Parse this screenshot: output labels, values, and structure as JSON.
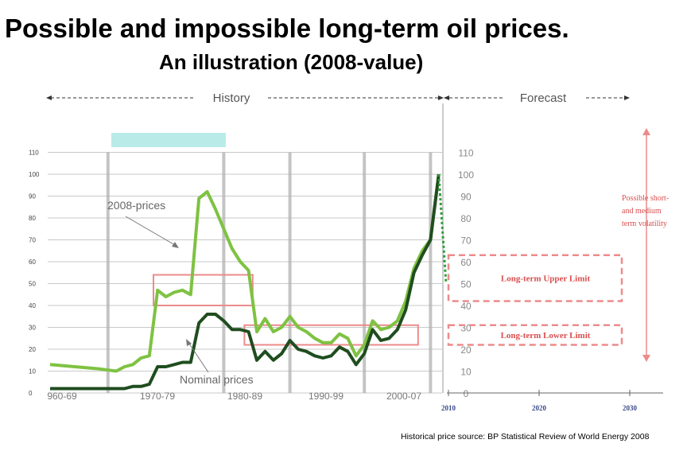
{
  "title": "Possible and impossible long-term oil prices.",
  "subtitle": "An illustration (2008-value)",
  "source_note": "Historical price source: BP Statistical Review of World Energy 2008",
  "colors": {
    "real": "#7ec242",
    "nominal": "#1f4d1f",
    "forecast_green": "#2e9e3a",
    "box": "#ec8b8b",
    "grid": "#c9c9c9",
    "cyan_bar": "#b9ebe8",
    "annotation_text": "#d94f4f",
    "forecast_axis_label": "#3a4a8a"
  },
  "periods": {
    "history": "History",
    "forecast": "Forecast"
  },
  "left_axis": {
    "ticks": [
      "110",
      "100",
      "90",
      "80",
      "70",
      "60",
      "50",
      "40",
      "30",
      "20",
      "10",
      "0"
    ]
  },
  "right_axis": {
    "ticks": [
      "110",
      "100",
      "90",
      "80",
      "70",
      "60",
      "50",
      "40",
      "30",
      "20",
      "10",
      "0"
    ]
  },
  "decade_labels": [
    "960-69",
    "1970-79",
    "1980-89",
    "1990-99",
    "2000-07"
  ],
  "forecast_years": [
    "2010",
    "2020",
    "2030"
  ],
  "annotations": {
    "real_label": "2008-prices",
    "nominal_label": "Nominal prices",
    "upper_limit": "Long-term Upper Limit",
    "lower_limit": "Long-term Lower Limit",
    "volatility": [
      "Possible short-",
      "and medium",
      "term volatility"
    ]
  },
  "chart_data": {
    "type": "line",
    "title": "Possible and impossible long-term oil prices.",
    "subtitle": "An illustration (2008-value)",
    "xlabel": "",
    "ylabel": "",
    "xlim": [
      1961,
      2034
    ],
    "ylim": [
      0,
      110
    ],
    "grid": true,
    "series": [
      {
        "name": "2008-prices",
        "points": [
          [
            1961,
            13
          ],
          [
            1964,
            12
          ],
          [
            1967,
            11
          ],
          [
            1969,
            10
          ],
          [
            1970,
            12
          ],
          [
            1971,
            13
          ],
          [
            1972,
            16
          ],
          [
            1973,
            17
          ],
          [
            1974,
            47
          ],
          [
            1975,
            44
          ],
          [
            1976,
            46
          ],
          [
            1977,
            47
          ],
          [
            1978,
            45
          ],
          [
            1979,
            89
          ],
          [
            1980,
            92
          ],
          [
            1981,
            84
          ],
          [
            1982,
            75
          ],
          [
            1983,
            66
          ],
          [
            1984,
            60
          ],
          [
            1985,
            56
          ],
          [
            1986,
            28
          ],
          [
            1987,
            34
          ],
          [
            1988,
            28
          ],
          [
            1989,
            30
          ],
          [
            1990,
            35
          ],
          [
            1991,
            30
          ],
          [
            1992,
            28
          ],
          [
            1993,
            25
          ],
          [
            1994,
            23
          ],
          [
            1995,
            23
          ],
          [
            1996,
            27
          ],
          [
            1997,
            25
          ],
          [
            1998,
            17
          ],
          [
            1999,
            22
          ],
          [
            2000,
            33
          ],
          [
            2001,
            29
          ],
          [
            2002,
            30
          ],
          [
            2003,
            33
          ],
          [
            2004,
            42
          ],
          [
            2005,
            57
          ],
          [
            2006,
            65
          ],
          [
            2007,
            70
          ],
          [
            2008,
            100
          ]
        ]
      },
      {
        "name": "Nominal prices",
        "points": [
          [
            1961,
            2
          ],
          [
            1964,
            2
          ],
          [
            1967,
            2
          ],
          [
            1969,
            2
          ],
          [
            1970,
            2
          ],
          [
            1971,
            3
          ],
          [
            1972,
            3
          ],
          [
            1973,
            4
          ],
          [
            1974,
            12
          ],
          [
            1975,
            12
          ],
          [
            1976,
            13
          ],
          [
            1977,
            14
          ],
          [
            1978,
            14
          ],
          [
            1979,
            32
          ],
          [
            1980,
            36
          ],
          [
            1981,
            36
          ],
          [
            1982,
            33
          ],
          [
            1983,
            29
          ],
          [
            1984,
            29
          ],
          [
            1985,
            28
          ],
          [
            1986,
            15
          ],
          [
            1987,
            19
          ],
          [
            1988,
            15
          ],
          [
            1989,
            18
          ],
          [
            1990,
            24
          ],
          [
            1991,
            20
          ],
          [
            1992,
            19
          ],
          [
            1993,
            17
          ],
          [
            1994,
            16
          ],
          [
            1995,
            17
          ],
          [
            1996,
            21
          ],
          [
            1997,
            19
          ],
          [
            1998,
            13
          ],
          [
            1999,
            18
          ],
          [
            2000,
            29
          ],
          [
            2001,
            24
          ],
          [
            2002,
            25
          ],
          [
            2003,
            29
          ],
          [
            2004,
            38
          ],
          [
            2005,
            55
          ],
          [
            2006,
            63
          ],
          [
            2007,
            70
          ],
          [
            2008,
            100
          ]
        ]
      }
    ],
    "forecast_drop": [
      [
        2008,
        100
      ],
      [
        2010,
        50
      ]
    ],
    "historical_boxes": [
      {
        "x": [
          1973.5,
          1985.5
        ],
        "y": [
          40,
          54
        ]
      },
      {
        "x": [
          1984.5,
          2005.5
        ],
        "y": [
          22,
          31
        ]
      }
    ],
    "forecast_bands": [
      {
        "label": "Long-term Upper Limit",
        "y": [
          42,
          63
        ]
      },
      {
        "label": "Long-term Lower Limit",
        "y": [
          22,
          31
        ]
      }
    ]
  }
}
